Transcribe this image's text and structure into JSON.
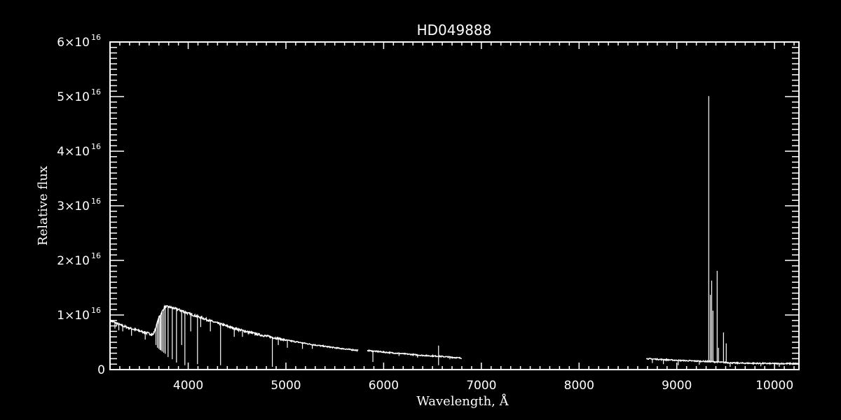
{
  "chart_data": {
    "type": "line",
    "title": "HD049888",
    "xlabel": "Wavelength, Å",
    "ylabel": "Relative flux",
    "xlim": [
      3200,
      10250
    ],
    "ylim": [
      0,
      6e+16
    ],
    "x_ticks": [
      4000,
      5000,
      6000,
      7000,
      8000,
      9000,
      10000
    ],
    "x_tick_labels": [
      "4000",
      "5000",
      "6000",
      "7000",
      "8000",
      "9000",
      "10000"
    ],
    "y_ticks": [
      0,
      1e+16,
      2e+16,
      3e+16,
      4e+16,
      5e+16,
      6e+16
    ],
    "y_tick_labels": [
      {
        "base": "0",
        "exp": ""
      },
      {
        "base": "1×10",
        "exp": "16"
      },
      {
        "base": "2×10",
        "exp": "16"
      },
      {
        "base": "3×10",
        "exp": "16"
      },
      {
        "base": "4×10",
        "exp": "16"
      },
      {
        "base": "5×10",
        "exp": "16"
      },
      {
        "base": "6×10",
        "exp": "16"
      }
    ],
    "grid": false,
    "colors": {
      "background": "#000000",
      "foreground": "#ffffff"
    },
    "flux_unit_scale": 1e+16,
    "continuum_segments": [
      [
        [
          3200,
          0.9
        ],
        [
          3300,
          0.82
        ],
        [
          3400,
          0.76
        ],
        [
          3500,
          0.71
        ],
        [
          3640,
          0.64
        ],
        [
          3660,
          0.72
        ],
        [
          3700,
          0.95
        ],
        [
          3760,
          1.15
        ],
        [
          3800,
          1.15
        ],
        [
          3900,
          1.1
        ],
        [
          4000,
          1.03
        ],
        [
          4100,
          0.97
        ],
        [
          4200,
          0.91
        ],
        [
          4300,
          0.85
        ],
        [
          4500,
          0.74
        ],
        [
          4700,
          0.65
        ],
        [
          5000,
          0.54
        ],
        [
          5300,
          0.45
        ],
        [
          5500,
          0.4
        ],
        [
          5740,
          0.35
        ]
      ],
      [
        [
          5835,
          0.35
        ],
        [
          6000,
          0.32
        ],
        [
          6200,
          0.29
        ],
        [
          6400,
          0.26
        ],
        [
          6600,
          0.24
        ],
        [
          6800,
          0.21
        ]
      ],
      [
        [
          8690,
          0.2
        ],
        [
          9000,
          0.17
        ],
        [
          9300,
          0.15
        ],
        [
          9600,
          0.12
        ],
        [
          10000,
          0.11
        ],
        [
          10250,
          0.11
        ]
      ]
    ],
    "absorption_lines": [
      [
        3250,
        0.75
      ],
      [
        3290,
        0.72
      ],
      [
        3330,
        0.7
      ],
      [
        3420,
        0.62
      ],
      [
        3560,
        0.55
      ],
      [
        3670,
        0.45
      ],
      [
        3685,
        0.4
      ],
      [
        3700,
        0.38
      ],
      [
        3712,
        0.36
      ],
      [
        3722,
        0.35
      ],
      [
        3734,
        0.33
      ],
      [
        3750,
        0.31
      ],
      [
        3765,
        0.29
      ],
      [
        3794,
        0.23
      ],
      [
        3837,
        0.19
      ],
      [
        3880,
        0.13
      ],
      [
        3933,
        0.45
      ],
      [
        3966,
        0.08
      ],
      [
        4026,
        0.7
      ],
      [
        4095,
        0.1
      ],
      [
        4128,
        0.78
      ],
      [
        4227,
        0.7
      ],
      [
        4331,
        0.08
      ],
      [
        4471,
        0.6
      ],
      [
        4555,
        0.6
      ],
      [
        4861,
        0.05
      ],
      [
        4922,
        0.45
      ],
      [
        5015,
        0.4
      ],
      [
        5169,
        0.38
      ],
      [
        5270,
        0.38
      ],
      [
        5890,
        0.14
      ],
      [
        6157,
        0.25
      ],
      [
        6347,
        0.22
      ],
      [
        6562,
        0.08
      ],
      [
        6678,
        0.19
      ],
      [
        8750,
        0.12
      ],
      [
        8863,
        0.1
      ],
      [
        9015,
        0.08
      ],
      [
        9230,
        0.09
      ],
      [
        9546,
        0.05
      ],
      [
        9860,
        0.06
      ],
      [
        10049,
        0.05
      ]
    ],
    "emission_lines": [
      [
        6562,
        0.44
      ],
      [
        9327,
        5.01
      ],
      [
        9343,
        1.37
      ],
      [
        9357,
        1.63
      ],
      [
        9370,
        1.08
      ],
      [
        9413,
        1.81
      ],
      [
        9427,
        0.4
      ],
      [
        9478,
        0.68
      ],
      [
        9506,
        0.48
      ]
    ]
  }
}
